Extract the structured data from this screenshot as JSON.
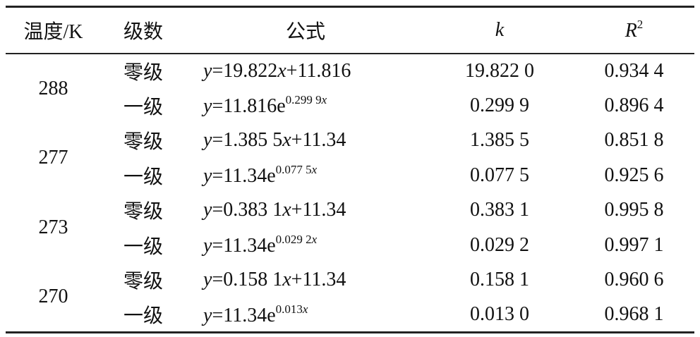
{
  "header": {
    "temperature": "温度/K",
    "order": "级数",
    "formula": "公式",
    "k": "k",
    "r2": {
      "base": "R",
      "sup": "2"
    }
  },
  "groups": [
    {
      "temperature": "288",
      "rows": [
        {
          "order": "零级",
          "formula": {
            "text": [
              "y",
              "=19.822",
              "x",
              "+11.816"
            ]
          },
          "k": "19.822 0",
          "r2": "0.934 4"
        },
        {
          "order": "一级",
          "formula": {
            "text": [
              "y",
              "=11.816e"
            ],
            "sup": [
              "0.299 9",
              "x"
            ]
          },
          "k": "0.299 9",
          "r2": "0.896 4"
        }
      ]
    },
    {
      "temperature": "277",
      "rows": [
        {
          "order": "零级",
          "formula": {
            "text": [
              "y",
              "=1.385 5",
              "x",
              "+11.34"
            ]
          },
          "k": "1.385 5",
          "r2": "0.851 8"
        },
        {
          "order": "一级",
          "formula": {
            "text": [
              "y",
              "=11.34e"
            ],
            "sup": [
              "0.077 5",
              "x"
            ]
          },
          "k": "0.077 5",
          "r2": "0.925 6"
        }
      ]
    },
    {
      "temperature": "273",
      "rows": [
        {
          "order": "零级",
          "formula": {
            "text": [
              "y",
              "=0.383 1",
              "x",
              "+11.34"
            ]
          },
          "k": "0.383 1",
          "r2": "0.995 8"
        },
        {
          "order": "一级",
          "formula": {
            "text": [
              "y",
              "=11.34e"
            ],
            "sup": [
              "0.029 2",
              "x"
            ]
          },
          "k": "0.029 2",
          "r2": "0.997 1"
        }
      ]
    },
    {
      "temperature": "270",
      "rows": [
        {
          "order": "零级",
          "formula": {
            "text": [
              "y",
              "=0.158 1",
              "x",
              "+11.34"
            ]
          },
          "k": "0.158 1",
          "r2": "0.960 6"
        },
        {
          "order": "一级",
          "formula": {
            "text": [
              "y",
              "=11.34e"
            ],
            "sup": [
              "0.013",
              "x"
            ]
          },
          "k": "0.013 0",
          "r2": "0.968 1"
        }
      ]
    }
  ]
}
